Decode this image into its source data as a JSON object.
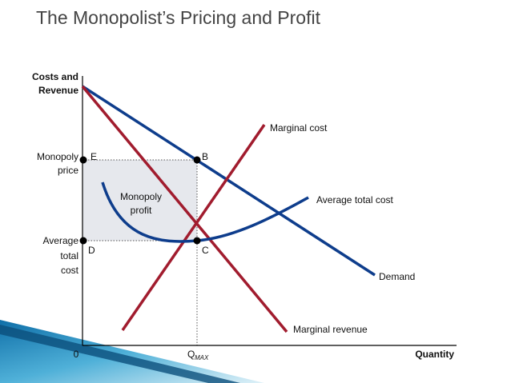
{
  "title": "The Monopolist’s Pricing and Profit",
  "axes": {
    "y_label": [
      "Costs and",
      "Revenue"
    ],
    "x_label": "Quantity",
    "origin": "0",
    "quantity": "Q",
    "quantity_subscript": "MAX"
  },
  "left_labels": {
    "monopoly_price": [
      "Monopoly",
      "price"
    ],
    "average_total_cost": [
      "Average",
      "total",
      "cost"
    ]
  },
  "points": [
    "E",
    "B",
    "D",
    "C"
  ],
  "area_label": [
    "Monopoly",
    "profit"
  ],
  "curves": {
    "marginal_cost": "Marginal cost",
    "average_total_cost": "Average total cost",
    "demand": "Demand",
    "marginal_revenue": "Marginal revenue"
  }
}
